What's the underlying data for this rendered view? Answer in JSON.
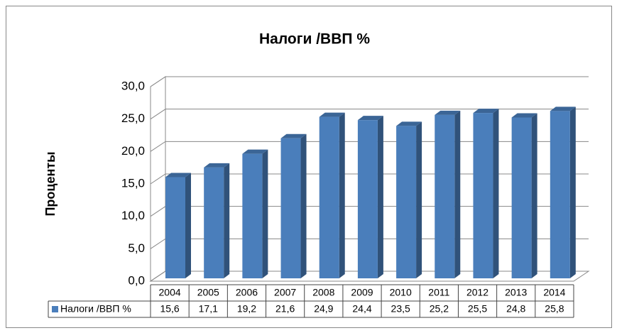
{
  "chart_data": {
    "type": "bar",
    "title": "Налоги /ВВП %",
    "y_label": "Проценты",
    "categories": [
      "2004",
      "2005",
      "2006",
      "2007",
      "2008",
      "2009",
      "2010",
      "2011",
      "2012",
      "2013",
      "2014"
    ],
    "series": [
      {
        "name": "Налоги /ВВП %",
        "color": "#4a7ebb",
        "values": [
          15.6,
          17.1,
          19.2,
          21.6,
          24.9,
          24.4,
          23.5,
          25.2,
          25.5,
          24.8,
          25.8
        ],
        "value_labels": [
          "15,6",
          "17,1",
          "19,2",
          "21,6",
          "24,9",
          "24,4",
          "23,5",
          "25,2",
          "25,5",
          "24,8",
          "25,8"
        ]
      }
    ],
    "ylim": [
      0,
      30
    ],
    "yticks": [
      {
        "value": 0,
        "label": "0,0"
      },
      {
        "value": 5,
        "label": "5,0"
      },
      {
        "value": 10,
        "label": "10,0"
      },
      {
        "value": 15,
        "label": "15,0"
      },
      {
        "value": 20,
        "label": "20,0"
      },
      {
        "value": 25,
        "label": "25,0"
      },
      {
        "value": 30,
        "label": "30,0"
      }
    ],
    "grid": true,
    "data_table": true
  }
}
